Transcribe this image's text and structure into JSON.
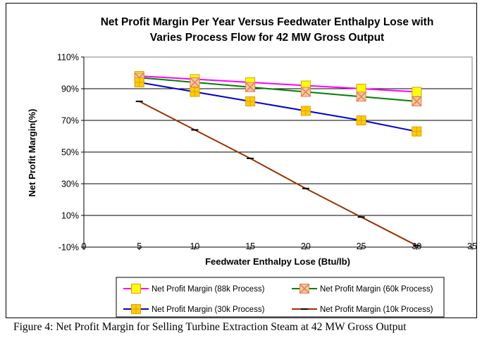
{
  "chart_data": {
    "type": "line",
    "title_lines": [
      "Net Profit Margin Per Year Versus Feedwater Enthalpy Lose with",
      "Varies Process Flow for 42 MW Gross Output"
    ],
    "xlabel": "Feedwater Enthalpy Lose (Btu/lb)",
    "ylabel": "Net Profit Margin(%)",
    "xlim": [
      0,
      35
    ],
    "ylim": [
      -10,
      110
    ],
    "x_ticks": [
      0,
      5,
      10,
      15,
      20,
      25,
      30,
      35
    ],
    "y_ticks": [
      -10,
      10,
      30,
      50,
      70,
      90,
      110
    ],
    "y_tick_labels": [
      "-10%",
      "10%",
      "30%",
      "50%",
      "70%",
      "90%",
      "110%"
    ],
    "grid": "horizontal",
    "legend_position": "bottom",
    "series": [
      {
        "name": "Net Profit Margin (88k Process)",
        "color": "#ff00ff",
        "marker": "square",
        "marker_fill": "#ffff00",
        "marker_stroke": "#d4a000",
        "x": [
          5,
          10,
          15,
          20,
          25,
          30
        ],
        "y": [
          98,
          96,
          94,
          92,
          90,
          88
        ]
      },
      {
        "name": "Net Profit Margin (60k Process)",
        "color": "#008000",
        "marker": "x-square",
        "marker_fill": "#f8c8a0",
        "marker_stroke": "#e08050",
        "x": [
          5,
          10,
          15,
          20,
          25,
          30
        ],
        "y": [
          97,
          94,
          91,
          88,
          85,
          82
        ]
      },
      {
        "name": "Net Profit Margin (30k Process)",
        "color": "#0000cc",
        "marker": "plus-square",
        "marker_fill": "#ffcc00",
        "marker_stroke": "#e0a000",
        "x": [
          5,
          10,
          15,
          20,
          25,
          30
        ],
        "y": [
          94,
          88,
          82,
          76,
          70,
          63
        ]
      },
      {
        "name": "Net Profit Margin (10k Process)",
        "color": "#993300",
        "marker": "dash",
        "marker_fill": "#000000",
        "marker_stroke": "#000000",
        "x": [
          5,
          10,
          15,
          20,
          25,
          30
        ],
        "y": [
          82,
          64,
          46,
          27,
          9,
          -9
        ]
      }
    ]
  },
  "caption": "Figure 4: Net Profit Margin for Selling Turbine Extraction Steam at 42 MW Gross Output"
}
